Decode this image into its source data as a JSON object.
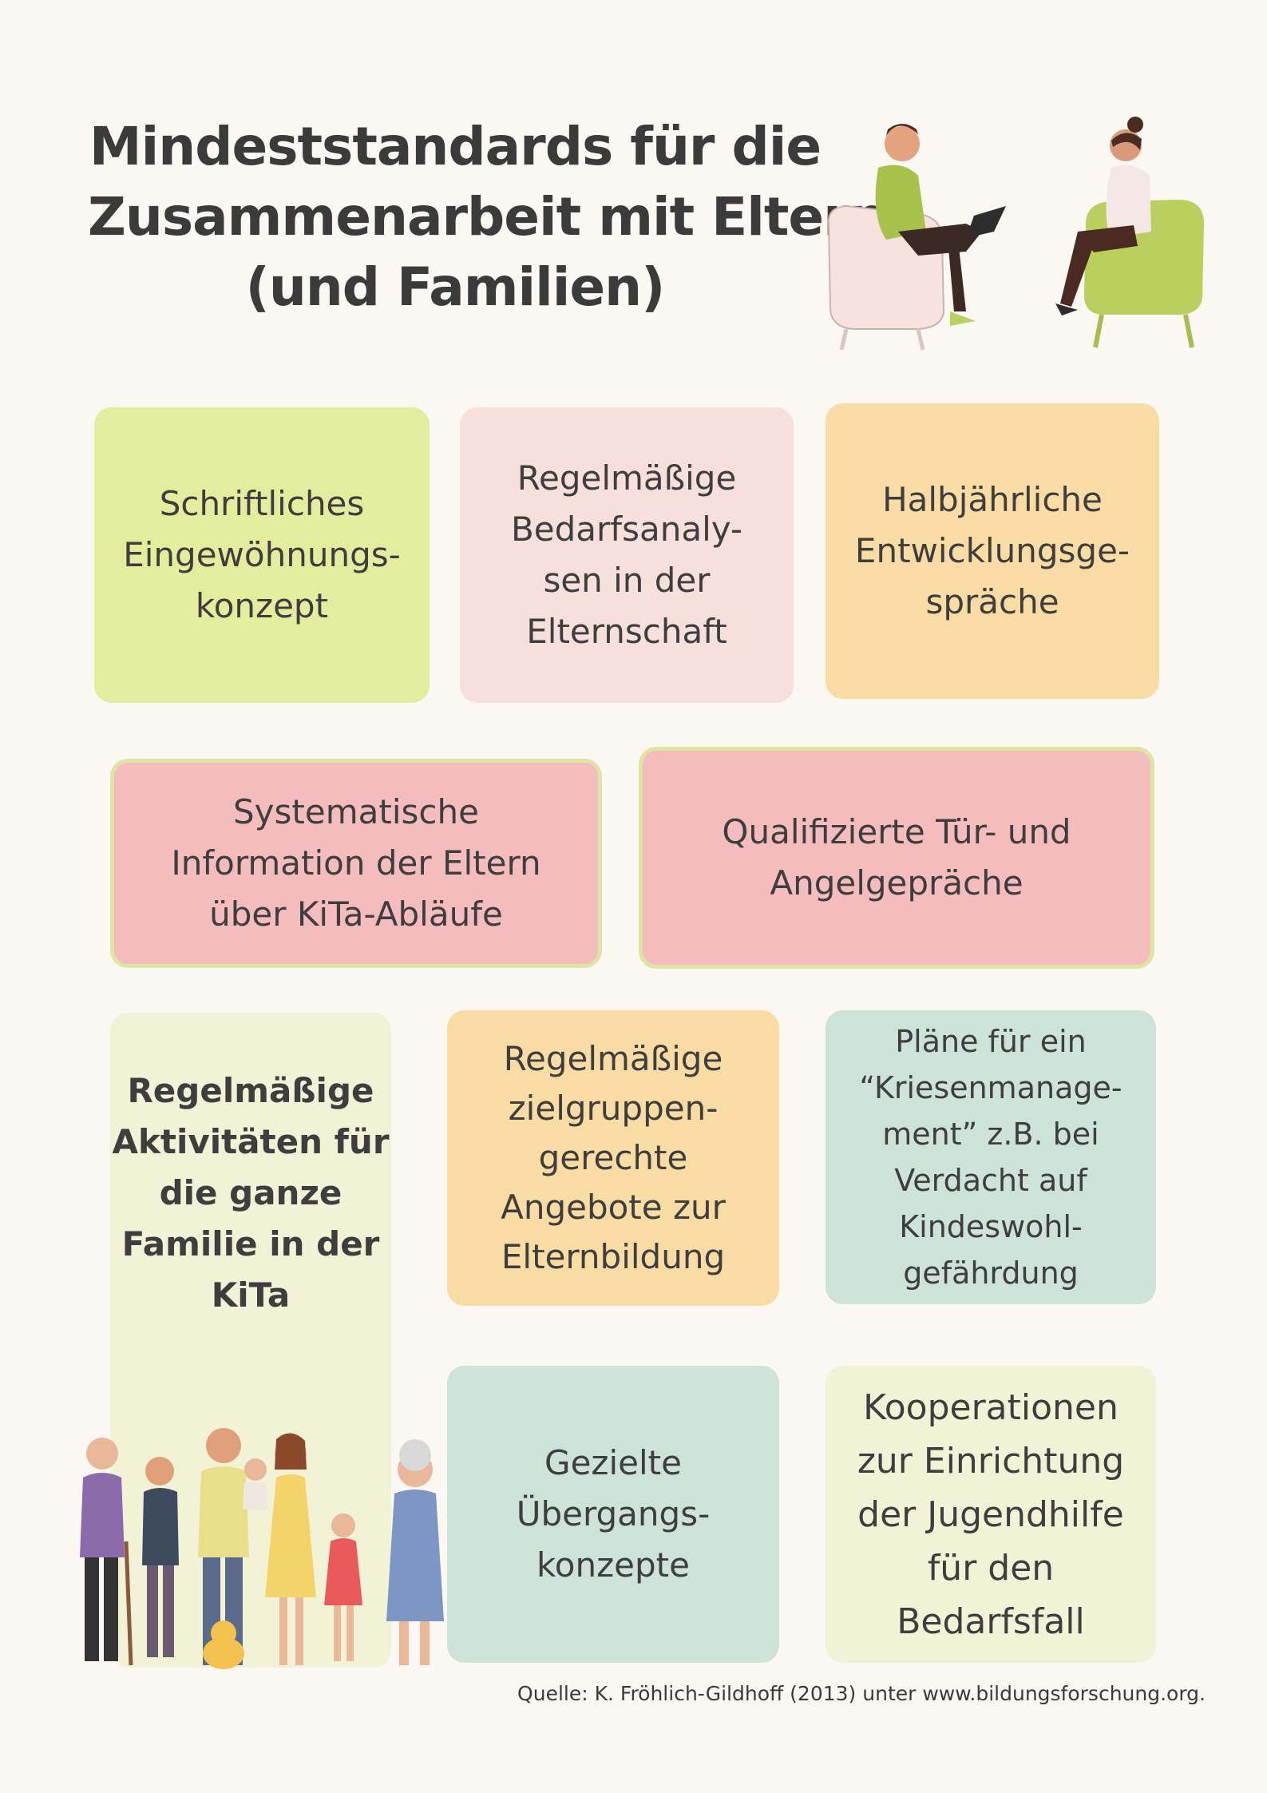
{
  "title": {
    "line1": "Mindeststandards für die",
    "line2": "Zusammenarbeit mit Eltern",
    "line3": "(und Familien)"
  },
  "cards": {
    "c1": "Schriftliches\nEingewöhnungs-\nkonzept",
    "c2": "Regelmäßige\nBedarfsanaly-\nsen in der\nElternschaft",
    "c3": "Halbjährliche\nEntwicklungsge-\nspräche",
    "c4": "Systematische\nInformation der Eltern\nüber KiTa-Abläufe",
    "c5": "Qualifizierte Tür- und\nAngelgepräche",
    "c6": "Regelmäßige\nAktivitäten für\ndie ganze\nFamilie in der\nKiTa",
    "c7": "Regelmäßige\nzielgruppen-\ngerechte\nAngebote zur\nElternbildung",
    "c8": "Pläne für ein\n“Kriesenmanage-\nment” z.B. bei\nVerdacht auf\nKindeswohl-\ngefährdung",
    "c9": "Gezielte\nÜbergangs-\nkonzepte",
    "c10": "Kooperationen\nzur Einrichtung\nder Jugendhilfe\nfür den\nBedarfsfall"
  },
  "source": "Quelle: K. Fröhlich-Gildhoff (2013) unter www.bildungsforschung.org.",
  "colors": {
    "background": "#fbf7f3",
    "green": "#e4ec9e",
    "pink_light": "#f7e0dc",
    "orange": "#f9dca4",
    "pink": "#f4bcbc",
    "cream": "#f1f2d6",
    "mint": "#cde3d9",
    "border_green": "#dde6a0"
  },
  "icons": {
    "top_illustration": "counseling-conversation-icon",
    "bottom_illustration": "family-group-icon"
  }
}
